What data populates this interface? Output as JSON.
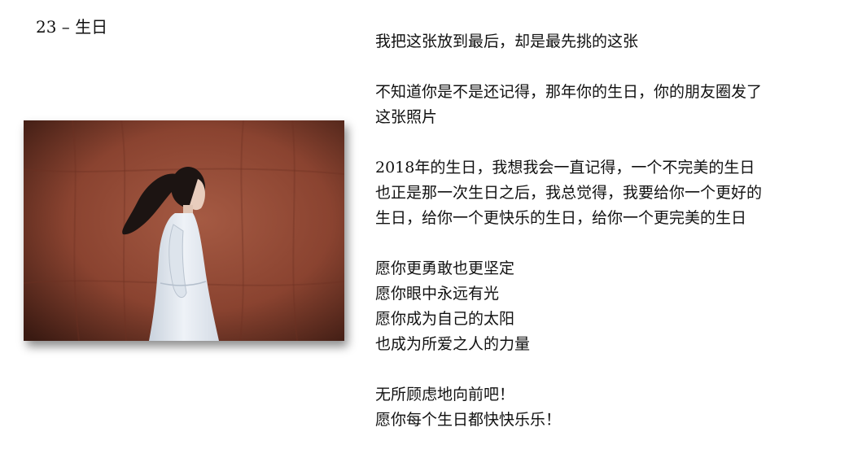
{
  "title": "23 – 生日",
  "photo": {
    "background_color": "#8a4330",
    "dress_color": "#e4eaf1",
    "hair_color": "#1c1412"
  },
  "paragraphs": [
    {
      "lines": [
        "我把这张放到最后，却是最先挑的这张"
      ]
    },
    {
      "lines": [
        "不知道你是不是还记得，那年你的生日，你的朋友圈发了",
        "这张照片"
      ]
    },
    {
      "lines": [
        "2018年的生日，我想我会一直记得，一个不完美的生日",
        "也正是那一次生日之后，我总觉得，我要给你一个更好的",
        "生日，给你一个更快乐的生日，给你一个更完美的生日"
      ]
    },
    {
      "lines": [
        "愿你更勇敢也更坚定",
        "愿你眼中永远有光",
        "愿你成为自己的太阳",
        "也成为所爱之人的力量"
      ]
    },
    {
      "lines": [
        "无所顾虑地向前吧！",
        "愿你每个生日都快快乐乐！"
      ]
    }
  ]
}
